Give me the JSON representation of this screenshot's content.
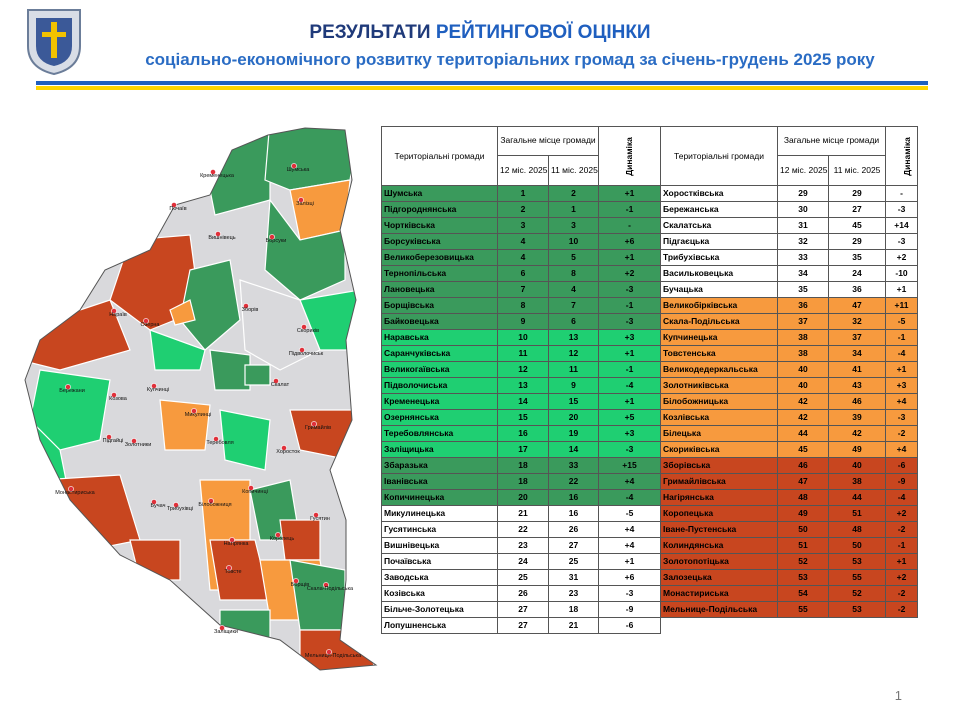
{
  "header": {
    "title_part1": "РЕЗУЛЬТАТИ",
    "title_part2": "РЕЙТИНГОВОЇ ОЦІНКИ",
    "subtitle": "соціально-економічного розвитку територіальних громад за січень-грудень 2025 року"
  },
  "tables": [
    {
      "columns": {
        "name": "Територіальні громади",
        "group": "Загальне місце громади",
        "c1": "12 міс. 2025",
        "c2": "11 міс. 2025",
        "dyn": "Динаміка"
      },
      "rows": [
        [
          "Шумська",
          1,
          2,
          "+1"
        ],
        [
          "Підгороднянська",
          2,
          1,
          "-1"
        ],
        [
          "Чортківська",
          3,
          3,
          "-"
        ],
        [
          "Борсуківська",
          4,
          10,
          "+6"
        ],
        [
          "Великоберезовицька",
          4,
          5,
          "+1"
        ],
        [
          "Тернопільська",
          6,
          8,
          "+2"
        ],
        [
          "Лановецька",
          7,
          4,
          "-3"
        ],
        [
          "Борщівська",
          8,
          7,
          "-1"
        ],
        [
          "Байковецька",
          9,
          6,
          "-3"
        ],
        [
          "Наравська",
          10,
          13,
          "+3"
        ],
        [
          "Саранчуківська",
          11,
          12,
          "+1"
        ],
        [
          "Великогаївська",
          12,
          11,
          "-1"
        ],
        [
          "Підволочиська",
          13,
          9,
          "-4"
        ],
        [
          "Кременецька",
          14,
          15,
          "+1"
        ],
        [
          "Озернянська",
          15,
          20,
          "+5"
        ],
        [
          "Теребовлянська",
          16,
          19,
          "+3"
        ],
        [
          "Заліщицька",
          17,
          14,
          "-3"
        ],
        [
          "Збаразька",
          18,
          33,
          "+15"
        ],
        [
          "Іванівська",
          18,
          22,
          "+4"
        ],
        [
          "Копичинецька",
          20,
          16,
          "-4"
        ],
        [
          "Микулинецька",
          21,
          16,
          "-5"
        ],
        [
          "Гусятинська",
          22,
          26,
          "+4"
        ],
        [
          "Вишнівецька",
          23,
          27,
          "+4"
        ],
        [
          "Почаївська",
          24,
          25,
          "+1"
        ],
        [
          "Заводська",
          25,
          31,
          "+6"
        ],
        [
          "Козівська",
          26,
          23,
          "-3"
        ],
        [
          "Більче-Золотецька",
          27,
          18,
          "-9"
        ],
        [
          "Лопушненська",
          27,
          21,
          "-6"
        ]
      ]
    },
    {
      "columns": {
        "name": "Територіальні громади",
        "group": "Загальне місце громади",
        "c1": "12 міс. 2025",
        "c2": "11 міс. 2025",
        "dyn": "Динаміка"
      },
      "rows": [
        [
          "Хоростківська",
          29,
          29,
          "-"
        ],
        [
          "Бережанська",
          30,
          27,
          "-3"
        ],
        [
          "Скалатська",
          31,
          45,
          "+14"
        ],
        [
          "Підгаєцька",
          32,
          29,
          "-3"
        ],
        [
          "Трибухівська",
          33,
          35,
          "+2"
        ],
        [
          "Васильковецька",
          34,
          24,
          "-10"
        ],
        [
          "Бучацька",
          35,
          36,
          "+1"
        ],
        [
          "Великобірківська",
          36,
          47,
          "+11"
        ],
        [
          "Скала-Подільська",
          37,
          32,
          "-5"
        ],
        [
          "Купчинецька",
          38,
          37,
          "-1"
        ],
        [
          "Товстенська",
          38,
          34,
          "-4"
        ],
        [
          "Великодедеркальська",
          40,
          41,
          "+1"
        ],
        [
          "Золотниківська",
          40,
          43,
          "+3"
        ],
        [
          "Білобожницька",
          42,
          46,
          "+4"
        ],
        [
          "Козлівська",
          42,
          39,
          "-3"
        ],
        [
          "Білецька",
          44,
          42,
          "-2"
        ],
        [
          "Скориківська",
          45,
          49,
          "+4"
        ],
        [
          "Зборівська",
          46,
          40,
          "-6"
        ],
        [
          "Гримайлівська",
          47,
          38,
          "-9"
        ],
        [
          "Нагірянська",
          48,
          44,
          "-4"
        ],
        [
          "Коропецька",
          49,
          51,
          "+2"
        ],
        [
          "Іване-Пустенська",
          50,
          48,
          "-2"
        ],
        [
          "Колиндянська",
          51,
          50,
          "-1"
        ],
        [
          "Золотопотіцька",
          52,
          53,
          "+1"
        ],
        [
          "Залозецька",
          53,
          55,
          "+2"
        ],
        [
          "Монастириська",
          54,
          52,
          "-2"
        ],
        [
          "Мельнице-Подільська",
          55,
          53,
          "-2"
        ]
      ]
    }
  ],
  "map_labels": [
    "Кременецька",
    "Шумська",
    "Почаїв",
    "Вишнівець",
    "Борсуки",
    "Зборів",
    "Залізці",
    "Озерна",
    "Скориків",
    "Нараїв",
    "Бережани",
    "Козова",
    "Підволочиськ",
    "Скалат",
    "Купчинці",
    "Микулинці",
    "Підгайці",
    "Золотники",
    "Гримайлів",
    "Теребовля",
    "Хоросток",
    "Монастириська",
    "Бучач",
    "Трибухівці",
    "Білобожниця",
    "Копичинці",
    "Гусятин",
    "Коропець",
    "Нагірянка",
    "Товсте",
    "Заліщики",
    "Борщів",
    "Скала-Подільська",
    "Мельниця-Подільська"
  ],
  "page_number": 1
}
